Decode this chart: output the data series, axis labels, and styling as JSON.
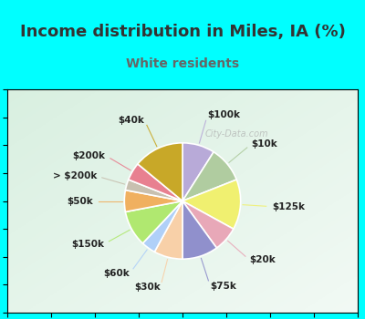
{
  "title": "Income distribution in Miles, IA (%)",
  "subtitle": "White residents",
  "title_color": "#333333",
  "subtitle_color": "#666666",
  "background_cyan": "#00ffff",
  "background_chart_tl": "#d0ece4",
  "background_chart_tr": "#c0e8e0",
  "background_chart_center": "#e8f5f0",
  "labels": [
    "$100k",
    "$10k",
    "$125k",
    "$20k",
    "$75k",
    "$30k",
    "$60k",
    "$150k",
    "$50k",
    "> $200k",
    "$200k",
    "$40k"
  ],
  "values": [
    9,
    10,
    14,
    7,
    10,
    8,
    4,
    10,
    6,
    3,
    5,
    14
  ],
  "colors": [
    "#b8aad8",
    "#b0cca0",
    "#f0f070",
    "#e8a8b8",
    "#9090cc",
    "#f8d0a8",
    "#b0d0f8",
    "#b0e870",
    "#f0b060",
    "#c8c0b0",
    "#e88090",
    "#c8a828"
  ],
  "watermark": "City-Data.com",
  "label_fontsize": 7.5,
  "title_fontsize": 13,
  "subtitle_fontsize": 10,
  "border_color": "#00ffff",
  "border_width": 8
}
